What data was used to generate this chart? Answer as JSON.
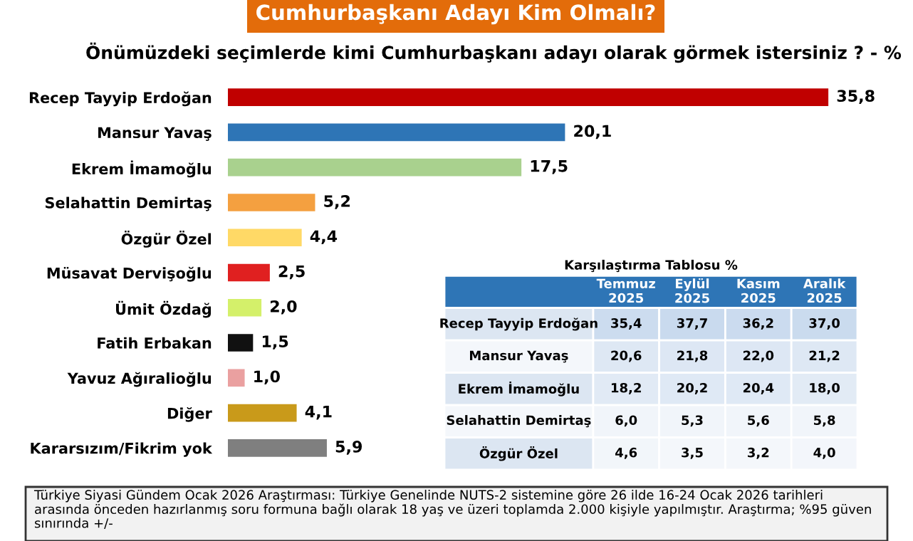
{
  "chart_data": [
    {
      "type": "bar",
      "orientation": "horizontal",
      "title": "Cumhurbaşkanı Adayı Kim Olmalı?",
      "subtitle": "Önümüzdeki seçimlerde kimi Cumhurbaşkanı adayı olarak görmek istersiniz ? - %",
      "categories": [
        "Recep Tayyip Erdoğan",
        "Mansur Yavaş",
        "Ekrem İmamoğlu",
        "Selahattin Demirtaş",
        "Özgür Özel",
        "Müsavat Dervişoğlu",
        "Ümit Özdağ",
        "Fatih Erbakan",
        "Yavuz Ağıralioğlu",
        "Diğer",
        "Kararsızım/Fikrim yok"
      ],
      "values": [
        35.8,
        20.1,
        17.5,
        5.2,
        4.4,
        2.5,
        2.0,
        1.5,
        1.0,
        4.1,
        5.9
      ],
      "colors": [
        "#c00000",
        "#2e75b6",
        "#a9d18e",
        "#f4a040",
        "#ffd966",
        "#e02020",
        "#d4f06a",
        "#111111",
        "#eaa0a0",
        "#c99a1a",
        "#7f7f7f"
      ],
      "value_labels": [
        "35,8",
        "20,1",
        "17,5",
        "5,2",
        "4,4",
        "2,5",
        "2,0",
        "1,5",
        "1,0",
        "4,1",
        "5,9"
      ],
      "grid": false,
      "annotations": [
        "Türkiye Siyasi Gündem Ocak 2026 Araştırması: Türkiye Genelinde NUTS-2 sistemine göre 26 ilde 16-24 Ocak 2026 tarihleri arasında önceden hazırlanmış soru formuna bağlı olarak 18 yaş ve üzeri toplamda 2.000 kişiyle yapılmıştır. Araştırma; %95 güven sınırında +/-"
      ]
    },
    {
      "type": "heatmap",
      "title": "Karşılaştırma Tablosu %",
      "categories": [
        "Temmuz 2025",
        "Eylül 2025",
        "Kasım 2025",
        "Aralık 2025"
      ],
      "y_categories": [
        "Recep Tayyip Erdoğan",
        "Mansur Yavaş",
        "Ekrem İmamoğlu",
        "Selahattin Demirtaş",
        "Özgür Özel"
      ],
      "cells": [
        [
          35.4,
          37.7,
          36.2,
          37.0
        ],
        [
          20.6,
          21.8,
          22.0,
          21.2
        ],
        [
          18.2,
          20.2,
          20.4,
          18.0
        ],
        [
          6.0,
          5.3,
          5.6,
          5.8
        ],
        [
          4.6,
          3.5,
          3.2,
          4.0
        ]
      ],
      "cell_labels": [
        [
          "35,4",
          "37,7",
          "36,2",
          "37,0"
        ],
        [
          "20,6",
          "21,8",
          "22,0",
          "21,2"
        ],
        [
          "18,2",
          "20,2",
          "20,4",
          "18,0"
        ],
        [
          "6,0",
          "5,3",
          "5,6",
          "5,8"
        ],
        [
          "4,6",
          "3,5",
          "3,2",
          "4,0"
        ]
      ]
    }
  ]
}
